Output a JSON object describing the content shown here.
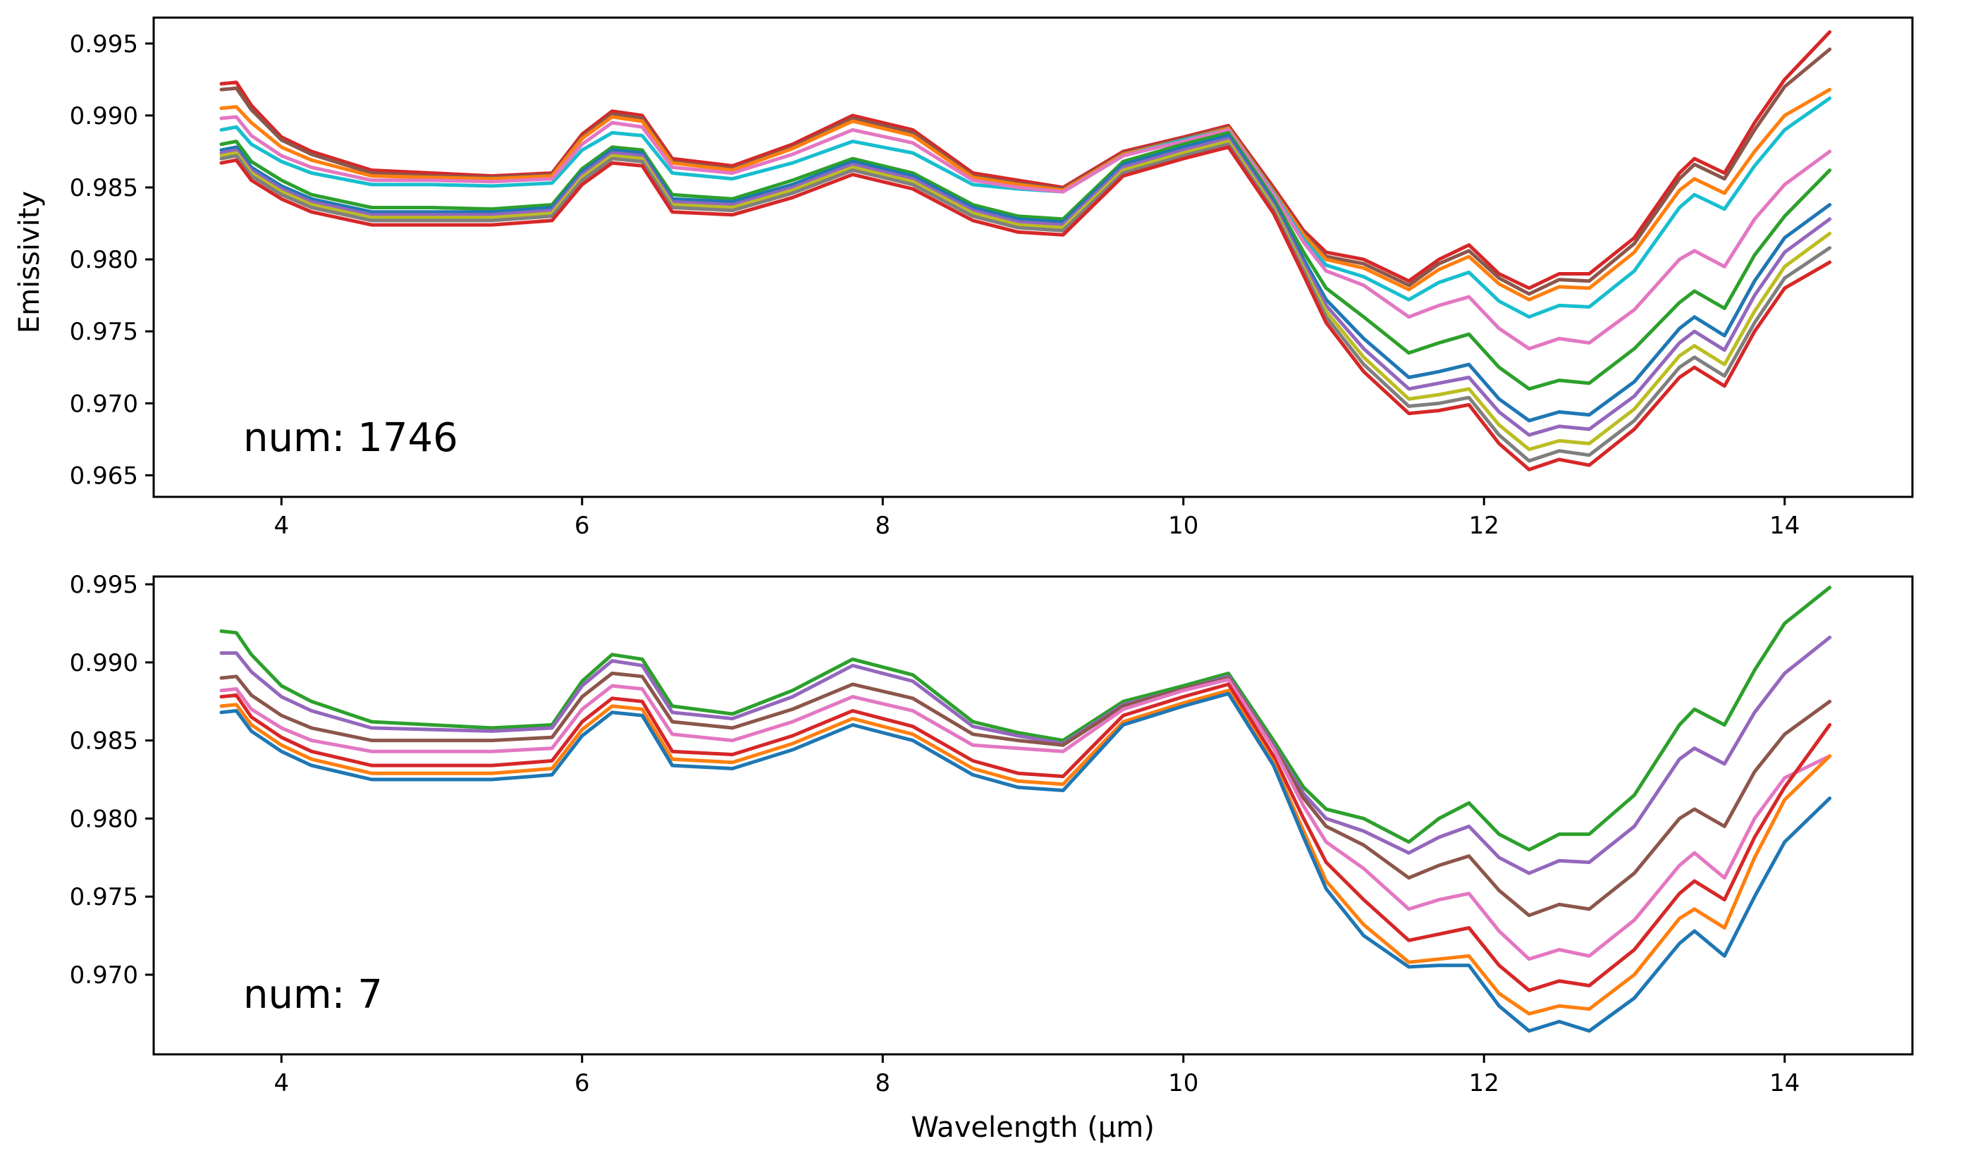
{
  "chart_data": [
    {
      "type": "line",
      "panel": "top",
      "annotation": "num: 1746",
      "xlabel": "",
      "ylabel": "Emissivity",
      "xlim": [
        3.15,
        14.85
      ],
      "ylim": [
        0.9635,
        0.9968
      ],
      "xticks": [
        4,
        6,
        8,
        10,
        12,
        14
      ],
      "xtick_labels": [
        "4",
        "6",
        "8",
        "10",
        "12",
        "14"
      ],
      "yticks": [
        0.965,
        0.97,
        0.975,
        0.98,
        0.985,
        0.99,
        0.995
      ],
      "ytick_labels": [
        "0.965",
        "0.970",
        "0.975",
        "0.980",
        "0.985",
        "0.990",
        "0.995"
      ],
      "grid": false,
      "x": [
        3.6,
        3.7,
        3.8,
        4.0,
        4.2,
        4.6,
        5.0,
        5.4,
        5.8,
        6.0,
        6.2,
        6.4,
        6.6,
        7.0,
        7.4,
        7.8,
        8.2,
        8.6,
        8.9,
        9.2,
        9.6,
        10.0,
        10.3,
        10.6,
        10.8,
        10.95,
        11.2,
        11.5,
        11.7,
        11.9,
        12.1,
        12.3,
        12.5,
        12.7,
        13.0,
        13.3,
        13.4,
        13.6,
        13.8,
        14.0,
        14.3
      ],
      "series": [
        {
          "name": "s1",
          "color": "#d62728",
          "values": [
            0.9922,
            0.9923,
            0.9907,
            0.9885,
            0.9875,
            0.9862,
            0.986,
            0.9858,
            0.986,
            0.9887,
            0.9903,
            0.99,
            0.987,
            0.9865,
            0.988,
            0.99,
            0.989,
            0.986,
            0.9855,
            0.985,
            0.9875,
            0.9885,
            0.9893,
            0.985,
            0.982,
            0.9805,
            0.98,
            0.9785,
            0.98,
            0.981,
            0.979,
            0.978,
            0.979,
            0.979,
            0.9815,
            0.986,
            0.987,
            0.986,
            0.9895,
            0.9925,
            0.9958
          ]
        },
        {
          "name": "s2",
          "color": "#8c564b",
          "values": [
            0.9918,
            0.9919,
            0.9904,
            0.9883,
            0.9873,
            0.986,
            0.9858,
            0.9857,
            0.9859,
            0.9885,
            0.9901,
            0.9898,
            0.9868,
            0.9863,
            0.9878,
            0.9898,
            0.9888,
            0.9858,
            0.9853,
            0.9849,
            0.9874,
            0.9884,
            0.9892,
            0.9848,
            0.9818,
            0.9802,
            0.9797,
            0.9782,
            0.9797,
            0.9806,
            0.9787,
            0.9776,
            0.9786,
            0.9785,
            0.9811,
            0.9856,
            0.9866,
            0.9856,
            0.989,
            0.992,
            0.9946
          ]
        },
        {
          "name": "s3",
          "color": "#ff7f0e",
          "values": [
            0.9905,
            0.9906,
            0.9895,
            0.9878,
            0.9869,
            0.9858,
            0.9857,
            0.9856,
            0.9858,
            0.9884,
            0.9899,
            0.9896,
            0.9867,
            0.9862,
            0.9877,
            0.9896,
            0.9886,
            0.9857,
            0.9852,
            0.9848,
            0.9873,
            0.9883,
            0.9891,
            0.9847,
            0.9817,
            0.98,
            0.9794,
            0.9779,
            0.9793,
            0.9802,
            0.9783,
            0.9772,
            0.9781,
            0.978,
            0.9805,
            0.9848,
            0.9856,
            0.9846,
            0.9875,
            0.99,
            0.9918
          ]
        },
        {
          "name": "s4",
          "color": "#17becf",
          "values": [
            0.989,
            0.9892,
            0.988,
            0.9868,
            0.986,
            0.9852,
            0.9852,
            0.9851,
            0.9853,
            0.9876,
            0.9888,
            0.9886,
            0.986,
            0.9856,
            0.9867,
            0.9882,
            0.9874,
            0.9852,
            0.9849,
            0.9847,
            0.9872,
            0.9883,
            0.989,
            0.9846,
            0.9814,
            0.9796,
            0.9788,
            0.9772,
            0.9784,
            0.9791,
            0.9771,
            0.976,
            0.9768,
            0.9767,
            0.9792,
            0.9836,
            0.9845,
            0.9835,
            0.9865,
            0.989,
            0.9912
          ]
        },
        {
          "name": "s5",
          "color": "#e377c2",
          "values": [
            0.9898,
            0.9899,
            0.9886,
            0.9872,
            0.9864,
            0.9855,
            0.9855,
            0.9854,
            0.9856,
            0.988,
            0.9895,
            0.9892,
            0.9864,
            0.986,
            0.9873,
            0.989,
            0.9881,
            0.9855,
            0.985,
            0.9847,
            0.9872,
            0.9882,
            0.989,
            0.9845,
            0.9812,
            0.9792,
            0.9782,
            0.976,
            0.9768,
            0.9774,
            0.9752,
            0.9738,
            0.9745,
            0.9742,
            0.9765,
            0.98,
            0.9806,
            0.9795,
            0.9828,
            0.9852,
            0.9875
          ]
        },
        {
          "name": "s6",
          "color": "#2ca02c",
          "values": [
            0.988,
            0.9882,
            0.9868,
            0.9855,
            0.9845,
            0.9836,
            0.9836,
            0.9835,
            0.9838,
            0.9863,
            0.9878,
            0.9876,
            0.9845,
            0.9842,
            0.9855,
            0.987,
            0.986,
            0.9838,
            0.983,
            0.9828,
            0.9868,
            0.988,
            0.9888,
            0.9842,
            0.9805,
            0.978,
            0.976,
            0.9735,
            0.9742,
            0.9748,
            0.9725,
            0.971,
            0.9716,
            0.9714,
            0.9738,
            0.977,
            0.9778,
            0.9766,
            0.9803,
            0.983,
            0.9862
          ]
        },
        {
          "name": "s7",
          "color": "#1f77b4",
          "values": [
            0.9876,
            0.9878,
            0.9864,
            0.9851,
            0.9842,
            0.9833,
            0.9833,
            0.9833,
            0.9836,
            0.9861,
            0.9876,
            0.9874,
            0.9842,
            0.984,
            0.9852,
            0.9868,
            0.9858,
            0.9836,
            0.9828,
            0.9826,
            0.9866,
            0.9878,
            0.9886,
            0.984,
            0.98,
            0.9772,
            0.9745,
            0.9718,
            0.9722,
            0.9727,
            0.9703,
            0.9688,
            0.9694,
            0.9692,
            0.9715,
            0.9752,
            0.976,
            0.9747,
            0.9785,
            0.9815,
            0.9838
          ]
        },
        {
          "name": "s8",
          "color": "#9467bd",
          "values": [
            0.9874,
            0.9876,
            0.9862,
            0.9849,
            0.984,
            0.9831,
            0.9831,
            0.9831,
            0.9834,
            0.9859,
            0.9874,
            0.9872,
            0.984,
            0.9838,
            0.985,
            0.9866,
            0.9856,
            0.9834,
            0.9826,
            0.9824,
            0.9864,
            0.9876,
            0.9884,
            0.9838,
            0.9797,
            0.9768,
            0.9738,
            0.971,
            0.9714,
            0.9718,
            0.9694,
            0.9678,
            0.9684,
            0.9682,
            0.9705,
            0.9742,
            0.975,
            0.9737,
            0.9775,
            0.9805,
            0.9828
          ]
        },
        {
          "name": "s9",
          "color": "#bcbd22",
          "values": [
            0.9872,
            0.9874,
            0.986,
            0.9847,
            0.9838,
            0.9829,
            0.9829,
            0.9829,
            0.9832,
            0.9857,
            0.9872,
            0.987,
            0.9838,
            0.9836,
            0.9848,
            0.9864,
            0.9854,
            0.9832,
            0.9824,
            0.9822,
            0.9862,
            0.9874,
            0.9882,
            0.9836,
            0.9794,
            0.9764,
            0.9732,
            0.9703,
            0.9706,
            0.971,
            0.9685,
            0.9668,
            0.9674,
            0.9672,
            0.9696,
            0.9733,
            0.974,
            0.9727,
            0.9764,
            0.9795,
            0.9818
          ]
        },
        {
          "name": "s10",
          "color": "#7f7f7f",
          "values": [
            0.987,
            0.9872,
            0.9858,
            0.9845,
            0.9836,
            0.9827,
            0.9827,
            0.9827,
            0.983,
            0.9855,
            0.987,
            0.9868,
            0.9836,
            0.9834,
            0.9846,
            0.9862,
            0.9852,
            0.983,
            0.9822,
            0.982,
            0.986,
            0.9872,
            0.988,
            0.9834,
            0.9792,
            0.976,
            0.9727,
            0.9698,
            0.97,
            0.9704,
            0.9678,
            0.966,
            0.9667,
            0.9664,
            0.9688,
            0.9725,
            0.9732,
            0.9719,
            0.9756,
            0.9787,
            0.9808
          ]
        },
        {
          "name": "s11",
          "color": "#d62728",
          "values": [
            0.9867,
            0.9869,
            0.9855,
            0.9842,
            0.9833,
            0.9824,
            0.9824,
            0.9824,
            0.9827,
            0.9852,
            0.9867,
            0.9865,
            0.9833,
            0.9831,
            0.9843,
            0.9859,
            0.9849,
            0.9827,
            0.9819,
            0.9817,
            0.9858,
            0.987,
            0.9878,
            0.9832,
            0.9789,
            0.9756,
            0.9722,
            0.9693,
            0.9695,
            0.9699,
            0.9672,
            0.9654,
            0.9661,
            0.9657,
            0.9682,
            0.9718,
            0.9725,
            0.9712,
            0.975,
            0.978,
            0.9798
          ]
        }
      ]
    },
    {
      "type": "line",
      "panel": "bottom",
      "annotation": "num: 7",
      "xlabel": "Wavelength (μm)",
      "ylabel": "",
      "xlim": [
        3.15,
        14.85
      ],
      "ylim": [
        0.9649,
        0.9955
      ],
      "xticks": [
        4,
        6,
        8,
        10,
        12,
        14
      ],
      "xtick_labels": [
        "4",
        "6",
        "8",
        "10",
        "12",
        "14"
      ],
      "yticks": [
        0.97,
        0.975,
        0.98,
        0.985,
        0.99,
        0.995
      ],
      "ytick_labels": [
        "0.970",
        "0.975",
        "0.980",
        "0.985",
        "0.990",
        "0.995"
      ],
      "grid": false,
      "x": [
        3.6,
        3.7,
        3.8,
        4.0,
        4.2,
        4.6,
        5.0,
        5.4,
        5.8,
        6.0,
        6.2,
        6.4,
        6.6,
        7.0,
        7.4,
        7.8,
        8.2,
        8.6,
        8.9,
        9.2,
        9.6,
        10.0,
        10.3,
        10.6,
        10.8,
        10.95,
        11.2,
        11.5,
        11.7,
        11.9,
        12.1,
        12.3,
        12.5,
        12.7,
        13.0,
        13.3,
        13.4,
        13.6,
        13.8,
        14.0,
        14.3
      ],
      "series": [
        {
          "name": "s1",
          "color": "#2ca02c",
          "values": [
            0.992,
            0.9919,
            0.9905,
            0.9885,
            0.9875,
            0.9862,
            0.986,
            0.9858,
            0.986,
            0.9888,
            0.9905,
            0.9902,
            0.9872,
            0.9867,
            0.9882,
            0.9902,
            0.9892,
            0.9862,
            0.9855,
            0.985,
            0.9875,
            0.9885,
            0.9893,
            0.985,
            0.982,
            0.9806,
            0.98,
            0.9785,
            0.98,
            0.981,
            0.979,
            0.978,
            0.979,
            0.979,
            0.9815,
            0.986,
            0.987,
            0.986,
            0.9895,
            0.9925,
            0.9948
          ]
        },
        {
          "name": "s2",
          "color": "#9467bd",
          "values": [
            0.9906,
            0.9906,
            0.9894,
            0.9878,
            0.9869,
            0.9858,
            0.9857,
            0.9856,
            0.9858,
            0.9885,
            0.9901,
            0.9898,
            0.9868,
            0.9864,
            0.9878,
            0.9898,
            0.9888,
            0.9859,
            0.9853,
            0.9848,
            0.9873,
            0.9883,
            0.9891,
            0.9847,
            0.9816,
            0.98,
            0.9792,
            0.9778,
            0.9788,
            0.9795,
            0.9775,
            0.9765,
            0.9773,
            0.9772,
            0.9795,
            0.9838,
            0.9845,
            0.9835,
            0.9868,
            0.9893,
            0.9916
          ]
        },
        {
          "name": "s3",
          "color": "#8c564b",
          "values": [
            0.989,
            0.9891,
            0.9879,
            0.9866,
            0.9858,
            0.985,
            0.985,
            0.985,
            0.9852,
            0.9878,
            0.9893,
            0.9891,
            0.9862,
            0.9858,
            0.987,
            0.9886,
            0.9877,
            0.9854,
            0.985,
            0.9847,
            0.9872,
            0.9883,
            0.989,
            0.9846,
            0.9813,
            0.9795,
            0.9783,
            0.9762,
            0.977,
            0.9776,
            0.9754,
            0.9738,
            0.9745,
            0.9742,
            0.9765,
            0.98,
            0.9806,
            0.9795,
            0.983,
            0.9854,
            0.9875
          ]
        },
        {
          "name": "s4",
          "color": "#e377c2",
          "values": [
            0.9882,
            0.9883,
            0.987,
            0.9858,
            0.985,
            0.9843,
            0.9843,
            0.9843,
            0.9845,
            0.987,
            0.9885,
            0.9883,
            0.9854,
            0.985,
            0.9862,
            0.9878,
            0.9869,
            0.9847,
            0.9845,
            0.9843,
            0.987,
            0.9882,
            0.9889,
            0.9845,
            0.9808,
            0.9785,
            0.9768,
            0.9742,
            0.9748,
            0.9752,
            0.9728,
            0.971,
            0.9716,
            0.9712,
            0.9735,
            0.977,
            0.9778,
            0.9762,
            0.98,
            0.9826,
            0.984
          ]
        },
        {
          "name": "s5",
          "color": "#d62728",
          "values": [
            0.9878,
            0.9879,
            0.9865,
            0.9852,
            0.9843,
            0.9834,
            0.9834,
            0.9834,
            0.9837,
            0.9862,
            0.9877,
            0.9875,
            0.9843,
            0.9841,
            0.9853,
            0.9869,
            0.9859,
            0.9837,
            0.9829,
            0.9827,
            0.9866,
            0.9878,
            0.9886,
            0.984,
            0.98,
            0.9772,
            0.9748,
            0.9722,
            0.9726,
            0.973,
            0.9706,
            0.969,
            0.9696,
            0.9693,
            0.9716,
            0.9752,
            0.976,
            0.9748,
            0.9788,
            0.982,
            0.986
          ]
        },
        {
          "name": "s6",
          "color": "#ff7f0e",
          "values": [
            0.9872,
            0.9873,
            0.986,
            0.9847,
            0.9838,
            0.9829,
            0.9829,
            0.9829,
            0.9832,
            0.9857,
            0.9872,
            0.987,
            0.9838,
            0.9836,
            0.9848,
            0.9864,
            0.9854,
            0.9832,
            0.9824,
            0.9822,
            0.9862,
            0.9874,
            0.9882,
            0.9836,
            0.9792,
            0.976,
            0.9732,
            0.9708,
            0.971,
            0.9712,
            0.9688,
            0.9675,
            0.968,
            0.9678,
            0.97,
            0.9736,
            0.9742,
            0.973,
            0.9775,
            0.9812,
            0.984
          ]
        },
        {
          "name": "s7",
          "color": "#1f77b4",
          "values": [
            0.9868,
            0.9869,
            0.9856,
            0.9843,
            0.9834,
            0.9825,
            0.9825,
            0.9825,
            0.9828,
            0.9853,
            0.9868,
            0.9866,
            0.9834,
            0.9832,
            0.9844,
            0.986,
            0.985,
            0.9828,
            0.982,
            0.9818,
            0.986,
            0.9872,
            0.988,
            0.9834,
            0.9788,
            0.9755,
            0.9725,
            0.9705,
            0.9706,
            0.9706,
            0.968,
            0.9664,
            0.967,
            0.9664,
            0.9685,
            0.972,
            0.9728,
            0.9712,
            0.975,
            0.9785,
            0.9813
          ]
        }
      ]
    }
  ]
}
